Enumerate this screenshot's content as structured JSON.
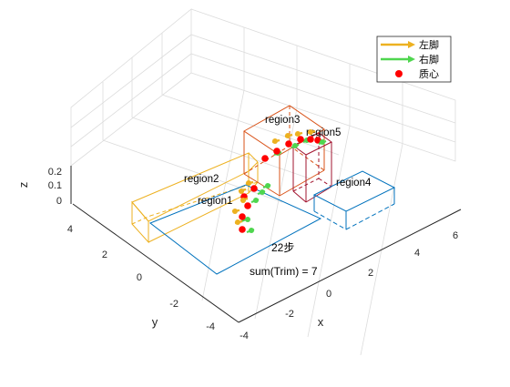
{
  "chart_data": {
    "type": "3d-plot",
    "title": "",
    "xlabel": "x",
    "ylabel": "y",
    "zlabel": "z",
    "x_ticks": [
      "-4",
      "-2",
      "0",
      "2",
      "4",
      "6"
    ],
    "y_ticks": [
      "-4",
      "-2",
      "0",
      "2",
      "4"
    ],
    "z_ticks": [
      "0",
      "0.1",
      "0.2"
    ],
    "grid": true,
    "legend_position": "top-right",
    "legend": [
      {
        "label": "左脚",
        "color": "#EDB120",
        "marker": "arrow"
      },
      {
        "label": "右脚",
        "color": "#4FD64F",
        "marker": "arrow"
      },
      {
        "label": "质心",
        "color": "#FF0000",
        "marker": "dot"
      }
    ],
    "regions": [
      {
        "name": "region1",
        "color": "#0072BD"
      },
      {
        "name": "region2",
        "color": "#EDB120"
      },
      {
        "name": "region3",
        "color": "#D95319"
      },
      {
        "name": "region4",
        "color": "#0072BD"
      },
      {
        "name": "region5",
        "color": "#A2142F"
      }
    ],
    "annotations": {
      "steps": "22步",
      "sum_trim": "sum(Trim) = 7"
    }
  }
}
